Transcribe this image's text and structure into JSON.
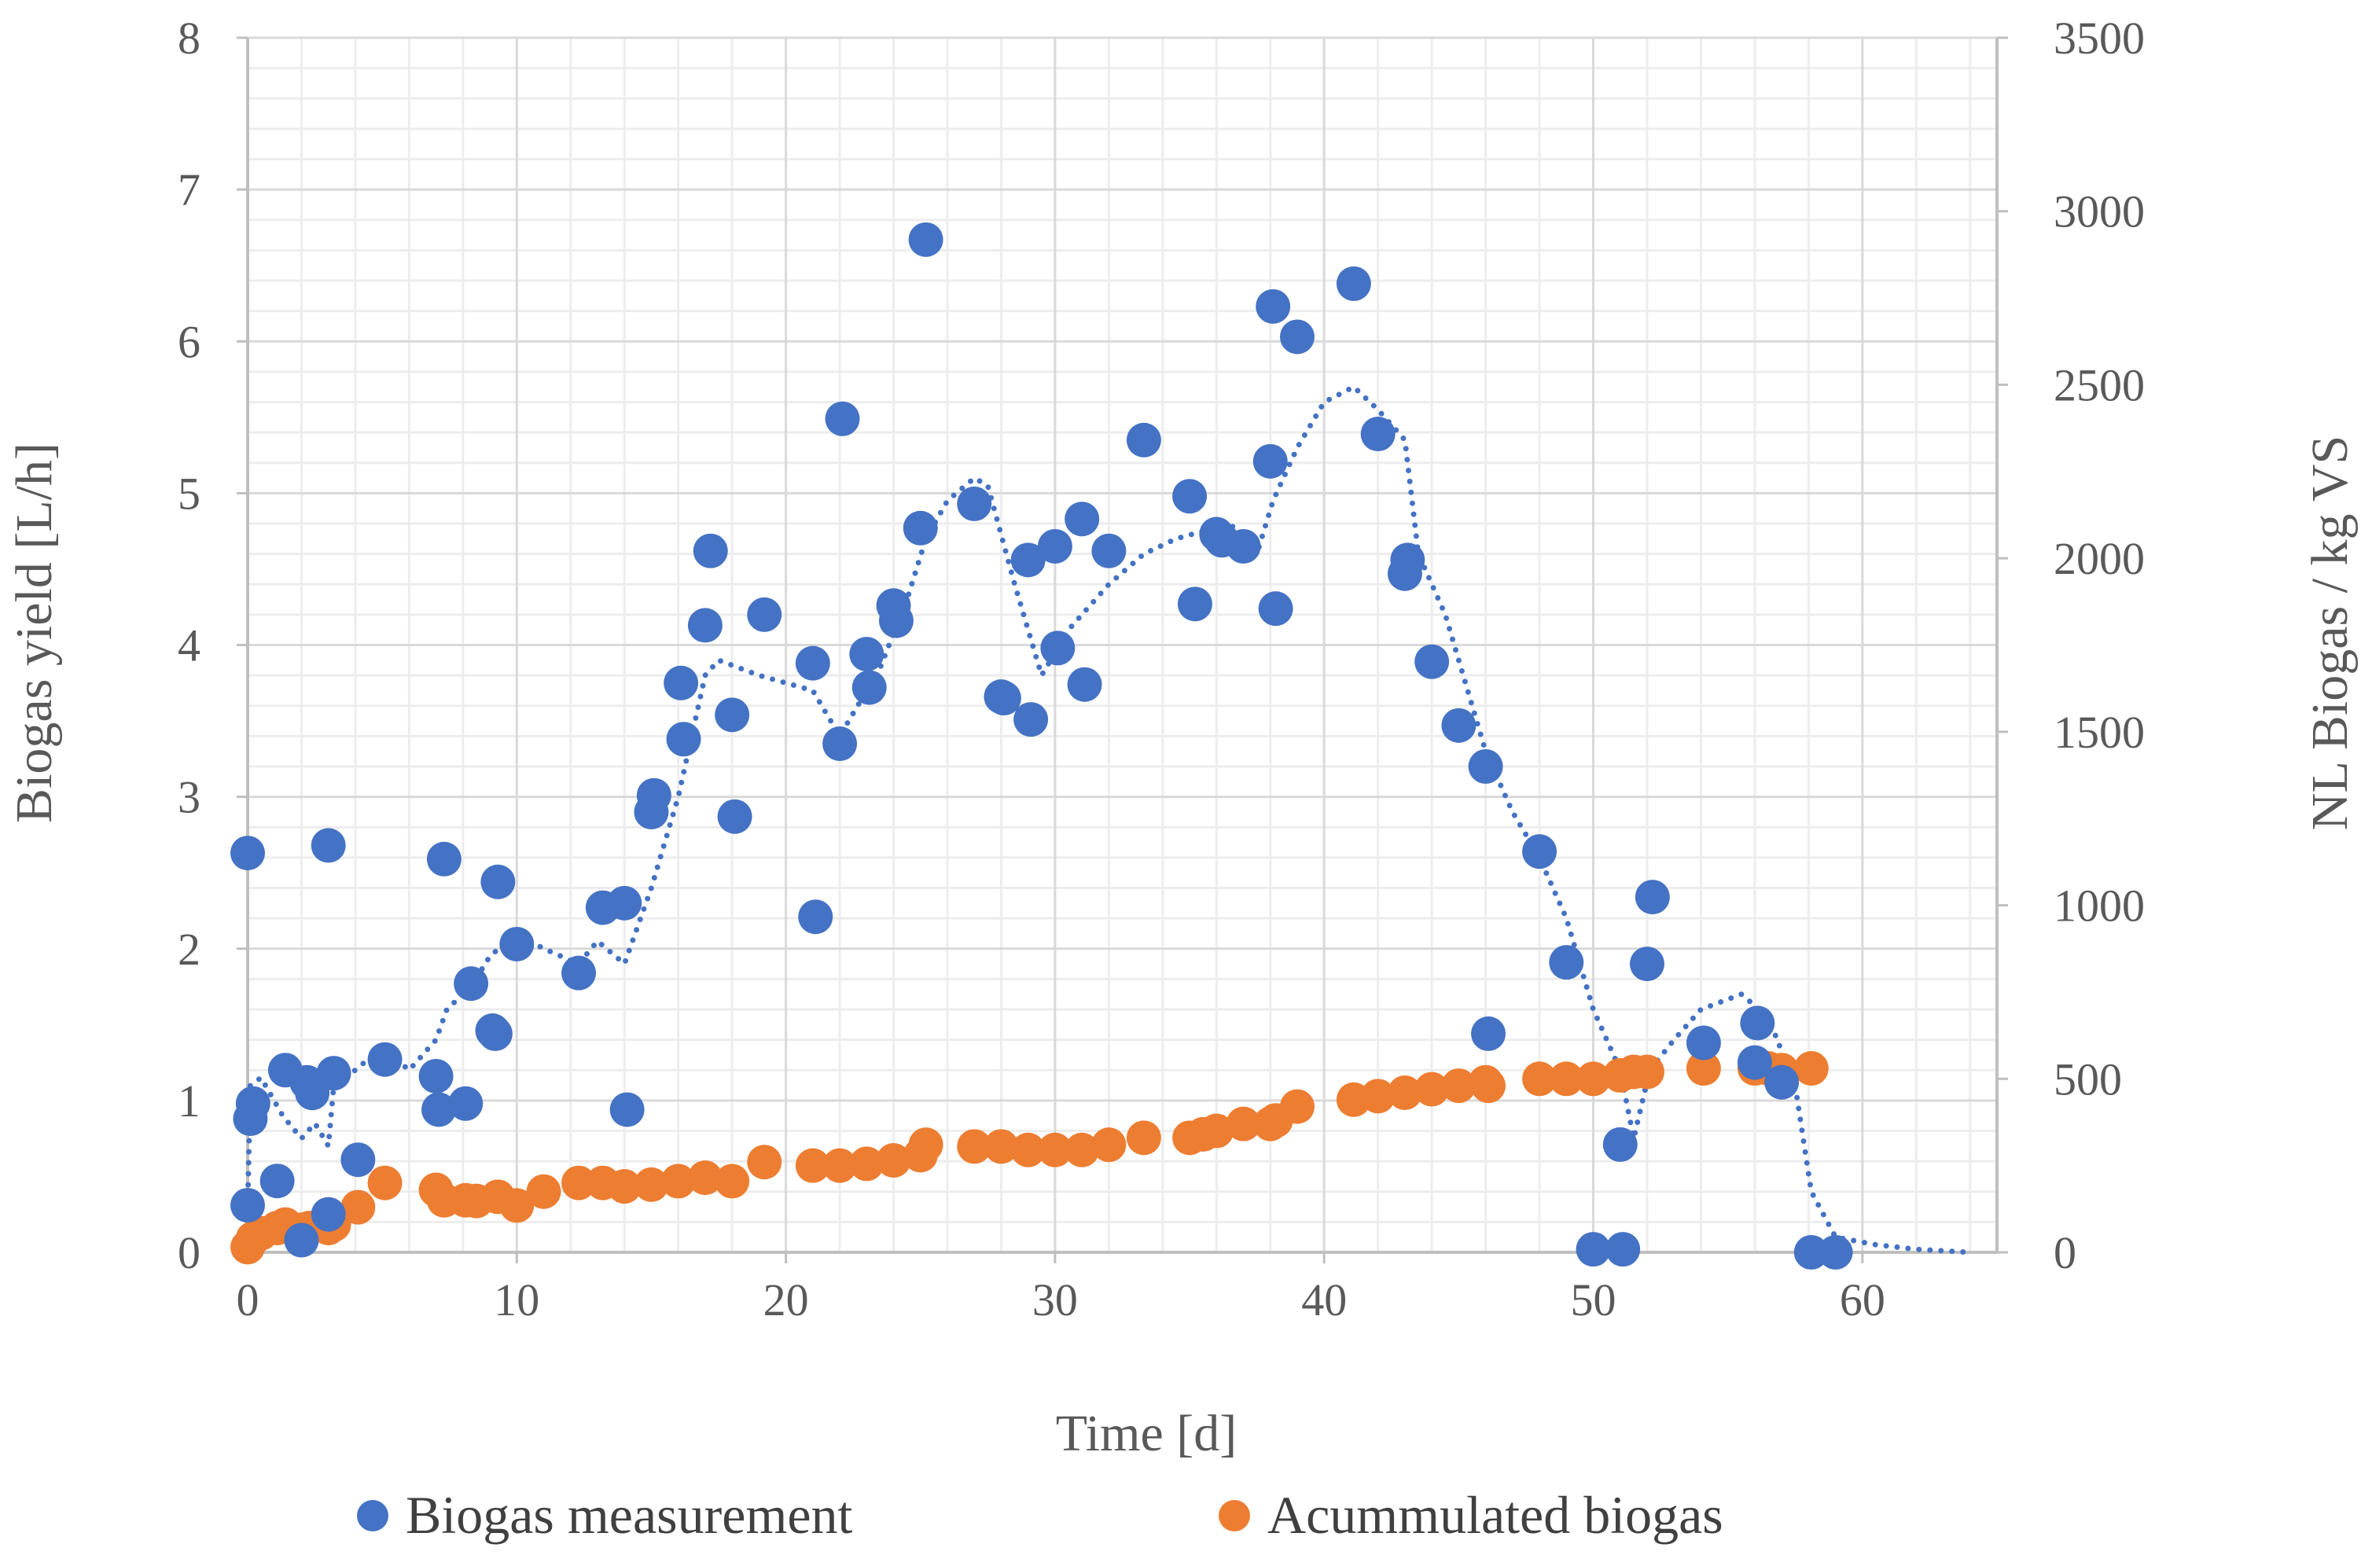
{
  "chart_data": {
    "type": "scatter",
    "xlabel": "Time [d]",
    "ylabel_left": "Biogas yield [L/h]",
    "ylabel_right": "NL Biogas / kg VS",
    "x_range": [
      0,
      65
    ],
    "x_ticks": [
      "0",
      "10",
      "20",
      "30",
      "40",
      "50",
      "60"
    ],
    "y_left_range": [
      0,
      8
    ],
    "y_left_ticks": [
      "0",
      "1",
      "2",
      "3",
      "4",
      "5",
      "6",
      "7",
      "8"
    ],
    "y_right_range": [
      0,
      3500
    ],
    "y_right_ticks": [
      "0",
      "500",
      "1000",
      "1500",
      "2000",
      "2500",
      "3000",
      "3500"
    ],
    "grid": true,
    "legend_position": "bottom",
    "colors": {
      "measurement": "#4472C4",
      "accumulated": "#ED7D31",
      "grid_major": "#D9D9D9",
      "grid_minor": "#EDEDED",
      "axis": "#BFBFBF"
    },
    "series": [
      {
        "name": "Biogas measurement",
        "axis": "left",
        "points": [
          [
            0.0,
            2.63
          ],
          [
            0.0,
            0.31
          ],
          [
            0.1,
            0.88
          ],
          [
            0.2,
            0.98
          ],
          [
            1.1,
            0.47
          ],
          [
            1.4,
            1.2
          ],
          [
            2.0,
            0.08
          ],
          [
            2.2,
            1.12
          ],
          [
            2.4,
            1.05
          ],
          [
            3.0,
            2.68
          ],
          [
            3.0,
            0.25
          ],
          [
            3.2,
            1.18
          ],
          [
            4.1,
            0.61
          ],
          [
            5.1,
            1.27
          ],
          [
            7.0,
            1.16
          ],
          [
            7.1,
            0.94
          ],
          [
            7.3,
            2.59
          ],
          [
            8.1,
            0.98
          ],
          [
            8.3,
            1.77
          ],
          [
            9.1,
            1.46
          ],
          [
            9.2,
            1.44
          ],
          [
            9.3,
            2.44
          ],
          [
            10.0,
            2.03
          ],
          [
            12.3,
            1.84
          ],
          [
            13.2,
            2.27
          ],
          [
            14.0,
            2.3
          ],
          [
            14.1,
            0.94
          ],
          [
            15.0,
            2.9
          ],
          [
            15.1,
            3.01
          ],
          [
            16.1,
            3.75
          ],
          [
            16.2,
            3.38
          ],
          [
            17.0,
            4.13
          ],
          [
            17.2,
            4.62
          ],
          [
            18.0,
            3.54
          ],
          [
            18.1,
            2.87
          ],
          [
            19.2,
            4.2
          ],
          [
            21.0,
            3.88
          ],
          [
            21.1,
            2.21
          ],
          [
            22.0,
            3.35
          ],
          [
            22.1,
            5.49
          ],
          [
            23.0,
            3.94
          ],
          [
            23.1,
            3.72
          ],
          [
            24.0,
            4.26
          ],
          [
            24.1,
            4.16
          ],
          [
            25.0,
            4.77
          ],
          [
            25.2,
            6.67
          ],
          [
            27.0,
            4.93
          ],
          [
            28.0,
            3.66
          ],
          [
            28.1,
            3.65
          ],
          [
            29.0,
            4.56
          ],
          [
            29.1,
            3.51
          ],
          [
            30.0,
            4.65
          ],
          [
            30.1,
            3.98
          ],
          [
            31.0,
            4.83
          ],
          [
            31.1,
            3.74
          ],
          [
            32.0,
            4.62
          ],
          [
            33.3,
            5.35
          ],
          [
            35.0,
            4.98
          ],
          [
            35.2,
            4.27
          ],
          [
            36.0,
            4.73
          ],
          [
            36.2,
            4.69
          ],
          [
            37.0,
            4.65
          ],
          [
            38.0,
            5.21
          ],
          [
            38.1,
            6.23
          ],
          [
            38.2,
            4.24
          ],
          [
            39.0,
            6.03
          ],
          [
            41.1,
            6.38
          ],
          [
            42.0,
            5.39
          ],
          [
            43.0,
            4.47
          ],
          [
            43.1,
            4.56
          ],
          [
            44.0,
            3.89
          ],
          [
            45.0,
            3.47
          ],
          [
            46.0,
            3.2
          ],
          [
            46.1,
            1.44
          ],
          [
            48.0,
            2.64
          ],
          [
            49.0,
            1.91
          ],
          [
            50.0,
            0.02
          ],
          [
            51.0,
            0.71
          ],
          [
            51.1,
            0.02
          ],
          [
            52.0,
            1.9
          ],
          [
            52.2,
            2.34
          ],
          [
            54.1,
            1.38
          ],
          [
            56.0,
            1.25
          ],
          [
            56.1,
            1.51
          ],
          [
            57.0,
            1.12
          ],
          [
            58.1,
            0.0
          ],
          [
            59.0,
            0.0
          ]
        ]
      },
      {
        "name": "Acummulated biogas",
        "axis": "right",
        "points": [
          [
            0.0,
            15
          ],
          [
            0.2,
            40
          ],
          [
            0.5,
            55
          ],
          [
            1.1,
            70
          ],
          [
            1.4,
            80
          ],
          [
            2.0,
            65
          ],
          [
            2.3,
            70
          ],
          [
            3.0,
            70
          ],
          [
            3.2,
            80
          ],
          [
            4.1,
            130
          ],
          [
            5.1,
            200
          ],
          [
            7.0,
            180
          ],
          [
            7.3,
            150
          ],
          [
            8.1,
            150
          ],
          [
            8.5,
            148
          ],
          [
            9.3,
            160
          ],
          [
            10.0,
            135
          ],
          [
            11.0,
            175
          ],
          [
            12.3,
            200
          ],
          [
            13.2,
            200
          ],
          [
            14.0,
            190
          ],
          [
            15.0,
            195
          ],
          [
            16.0,
            205
          ],
          [
            17.0,
            215
          ],
          [
            18.0,
            205
          ],
          [
            19.2,
            260
          ],
          [
            21.0,
            250
          ],
          [
            22.0,
            250
          ],
          [
            23.0,
            255
          ],
          [
            24.0,
            265
          ],
          [
            25.0,
            280
          ],
          [
            25.2,
            310
          ],
          [
            27.0,
            305
          ],
          [
            28.0,
            305
          ],
          [
            29.0,
            295
          ],
          [
            30.0,
            295
          ],
          [
            31.0,
            295
          ],
          [
            32.0,
            310
          ],
          [
            33.3,
            330
          ],
          [
            35.0,
            330
          ],
          [
            35.5,
            340
          ],
          [
            36.0,
            350
          ],
          [
            37.0,
            370
          ],
          [
            38.0,
            370
          ],
          [
            38.2,
            380
          ],
          [
            39.0,
            420
          ],
          [
            41.1,
            440
          ],
          [
            42.0,
            450
          ],
          [
            43.0,
            460
          ],
          [
            44.0,
            470
          ],
          [
            45.0,
            480
          ],
          [
            46.0,
            490
          ],
          [
            46.1,
            480
          ],
          [
            48.0,
            500
          ],
          [
            49.0,
            500
          ],
          [
            50.0,
            500
          ],
          [
            51.0,
            510
          ],
          [
            51.5,
            520
          ],
          [
            52.0,
            520
          ],
          [
            54.1,
            530
          ],
          [
            56.0,
            530
          ],
          [
            56.5,
            530
          ],
          [
            57.0,
            525
          ],
          [
            58.1,
            530
          ]
        ]
      }
    ],
    "trend_line": {
      "series": "Biogas measurement",
      "style": "moving-average",
      "points": [
        [
          0.0,
          0.3
        ],
        [
          0.1,
          1.1
        ],
        [
          0.5,
          1.15
        ],
        [
          1.3,
          0.9
        ],
        [
          2.0,
          0.75
        ],
        [
          2.5,
          0.85
        ],
        [
          3.0,
          0.7
        ],
        [
          3.2,
          1.1
        ],
        [
          4.0,
          1.2
        ],
        [
          5.0,
          1.35
        ],
        [
          6.0,
          1.2
        ],
        [
          7.0,
          1.4
        ],
        [
          7.4,
          1.6
        ],
        [
          8.3,
          1.75
        ],
        [
          9.0,
          1.95
        ],
        [
          10.0,
          2.1
        ],
        [
          11.0,
          2.0
        ],
        [
          12.3,
          1.9
        ],
        [
          13.0,
          2.05
        ],
        [
          14.0,
          1.9
        ],
        [
          15.0,
          2.4
        ],
        [
          16.0,
          3.0
        ],
        [
          17.0,
          3.8
        ],
        [
          17.5,
          3.9
        ],
        [
          19.0,
          3.8
        ],
        [
          21.0,
          3.7
        ],
        [
          22.0,
          3.4
        ],
        [
          23.5,
          3.85
        ],
        [
          24.5,
          4.3
        ],
        [
          25.2,
          4.7
        ],
        [
          26.0,
          4.95
        ],
        [
          27.0,
          5.1
        ],
        [
          27.5,
          5.05
        ],
        [
          28.5,
          4.4
        ],
        [
          29.5,
          3.8
        ],
        [
          30.5,
          4.1
        ],
        [
          32.0,
          4.4
        ],
        [
          33.3,
          4.6
        ],
        [
          34.5,
          4.7
        ],
        [
          36.5,
          4.8
        ],
        [
          37.5,
          4.6
        ],
        [
          38.1,
          4.95
        ],
        [
          39.0,
          5.3
        ],
        [
          40.0,
          5.6
        ],
        [
          41.1,
          5.7
        ],
        [
          42.0,
          5.55
        ],
        [
          43.0,
          5.35
        ],
        [
          43.5,
          4.6
        ],
        [
          44.5,
          4.2
        ],
        [
          46.0,
          3.3
        ],
        [
          47.0,
          2.9
        ],
        [
          48.0,
          2.6
        ],
        [
          49.0,
          2.2
        ],
        [
          50.0,
          1.6
        ],
        [
          51.0,
          1.2
        ],
        [
          51.5,
          0.75
        ],
        [
          52.1,
          1.2
        ],
        [
          53.0,
          1.4
        ],
        [
          54.0,
          1.6
        ],
        [
          55.5,
          1.7
        ],
        [
          56.5,
          1.55
        ],
        [
          57.5,
          1.1
        ],
        [
          58.1,
          0.4
        ],
        [
          59.0,
          0.1
        ],
        [
          60.5,
          0.05
        ],
        [
          62.0,
          0.02
        ],
        [
          64.0,
          0.0
        ]
      ]
    },
    "legend": [
      {
        "label": "Biogas measurement",
        "series": "Biogas measurement"
      },
      {
        "label": "Acummulated biogas",
        "series": "Acummulated biogas"
      }
    ]
  }
}
